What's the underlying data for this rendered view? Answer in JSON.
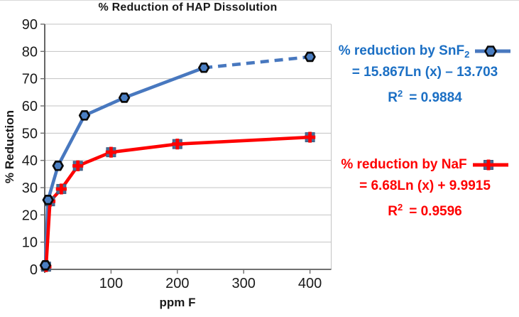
{
  "chart_data": {
    "type": "line",
    "title": "% Reduction of HAP Dissolution",
    "xlabel": "ppm F",
    "ylabel": "% Reduction",
    "xlim": [
      0,
      432
    ],
    "ylim": [
      0,
      90
    ],
    "yticks": [
      0,
      10,
      20,
      30,
      40,
      50,
      60,
      70,
      80,
      90
    ],
    "xticks": [
      100,
      200,
      300,
      400
    ],
    "grid": "horizontal",
    "legend_position": "right",
    "series": [
      {
        "name": "% reduction by SnF2",
        "color": "#4878bf",
        "marker": "hexagon",
        "marker_fill": "#4a7ec2",
        "marker_stroke": "#0a0a0a",
        "x": [
          1,
          5,
          20,
          60,
          120,
          240,
          400
        ],
        "y": [
          1.5,
          25.5,
          38,
          56.5,
          63,
          74,
          78
        ],
        "dashed_from_index": 5,
        "trendline_equation": "= 15.867Ln (x) – 13.703",
        "r_squared": "0.9884"
      },
      {
        "name": "% reduction by NaF",
        "color": "#fe0000",
        "marker": "square-plus",
        "marker_fill": "#4a6d96",
        "marker_stroke": "#3c5a7e",
        "x": [
          2,
          8,
          25,
          50,
          100,
          200,
          400
        ],
        "y": [
          1,
          25,
          29.5,
          38,
          43,
          46,
          48.5
        ],
        "trendline_equation": "= 6.68Ln (x) + 9.9915",
        "r_squared": "0.9596"
      }
    ]
  },
  "legend": {
    "snf2": {
      "label_prefix": "% reduction by SnF",
      "label_sub": "2",
      "equation": "= 15.867Ln (x) – 13.703",
      "r_label": "R",
      "r_sup": "2",
      "r_value": "= 0.9884"
    },
    "naf": {
      "label": "% reduction by NaF",
      "equation": "= 6.68Ln (x) + 9.9915",
      "r_label": "R",
      "r_sup": "2",
      "r_value": "= 0.9596"
    }
  },
  "colors": {
    "grid": "#c3c3c3",
    "axis": "#404040",
    "tick": "#6e6e6e",
    "legend_blue": "#1b6fc4",
    "legend_red": "#fe0000"
  }
}
